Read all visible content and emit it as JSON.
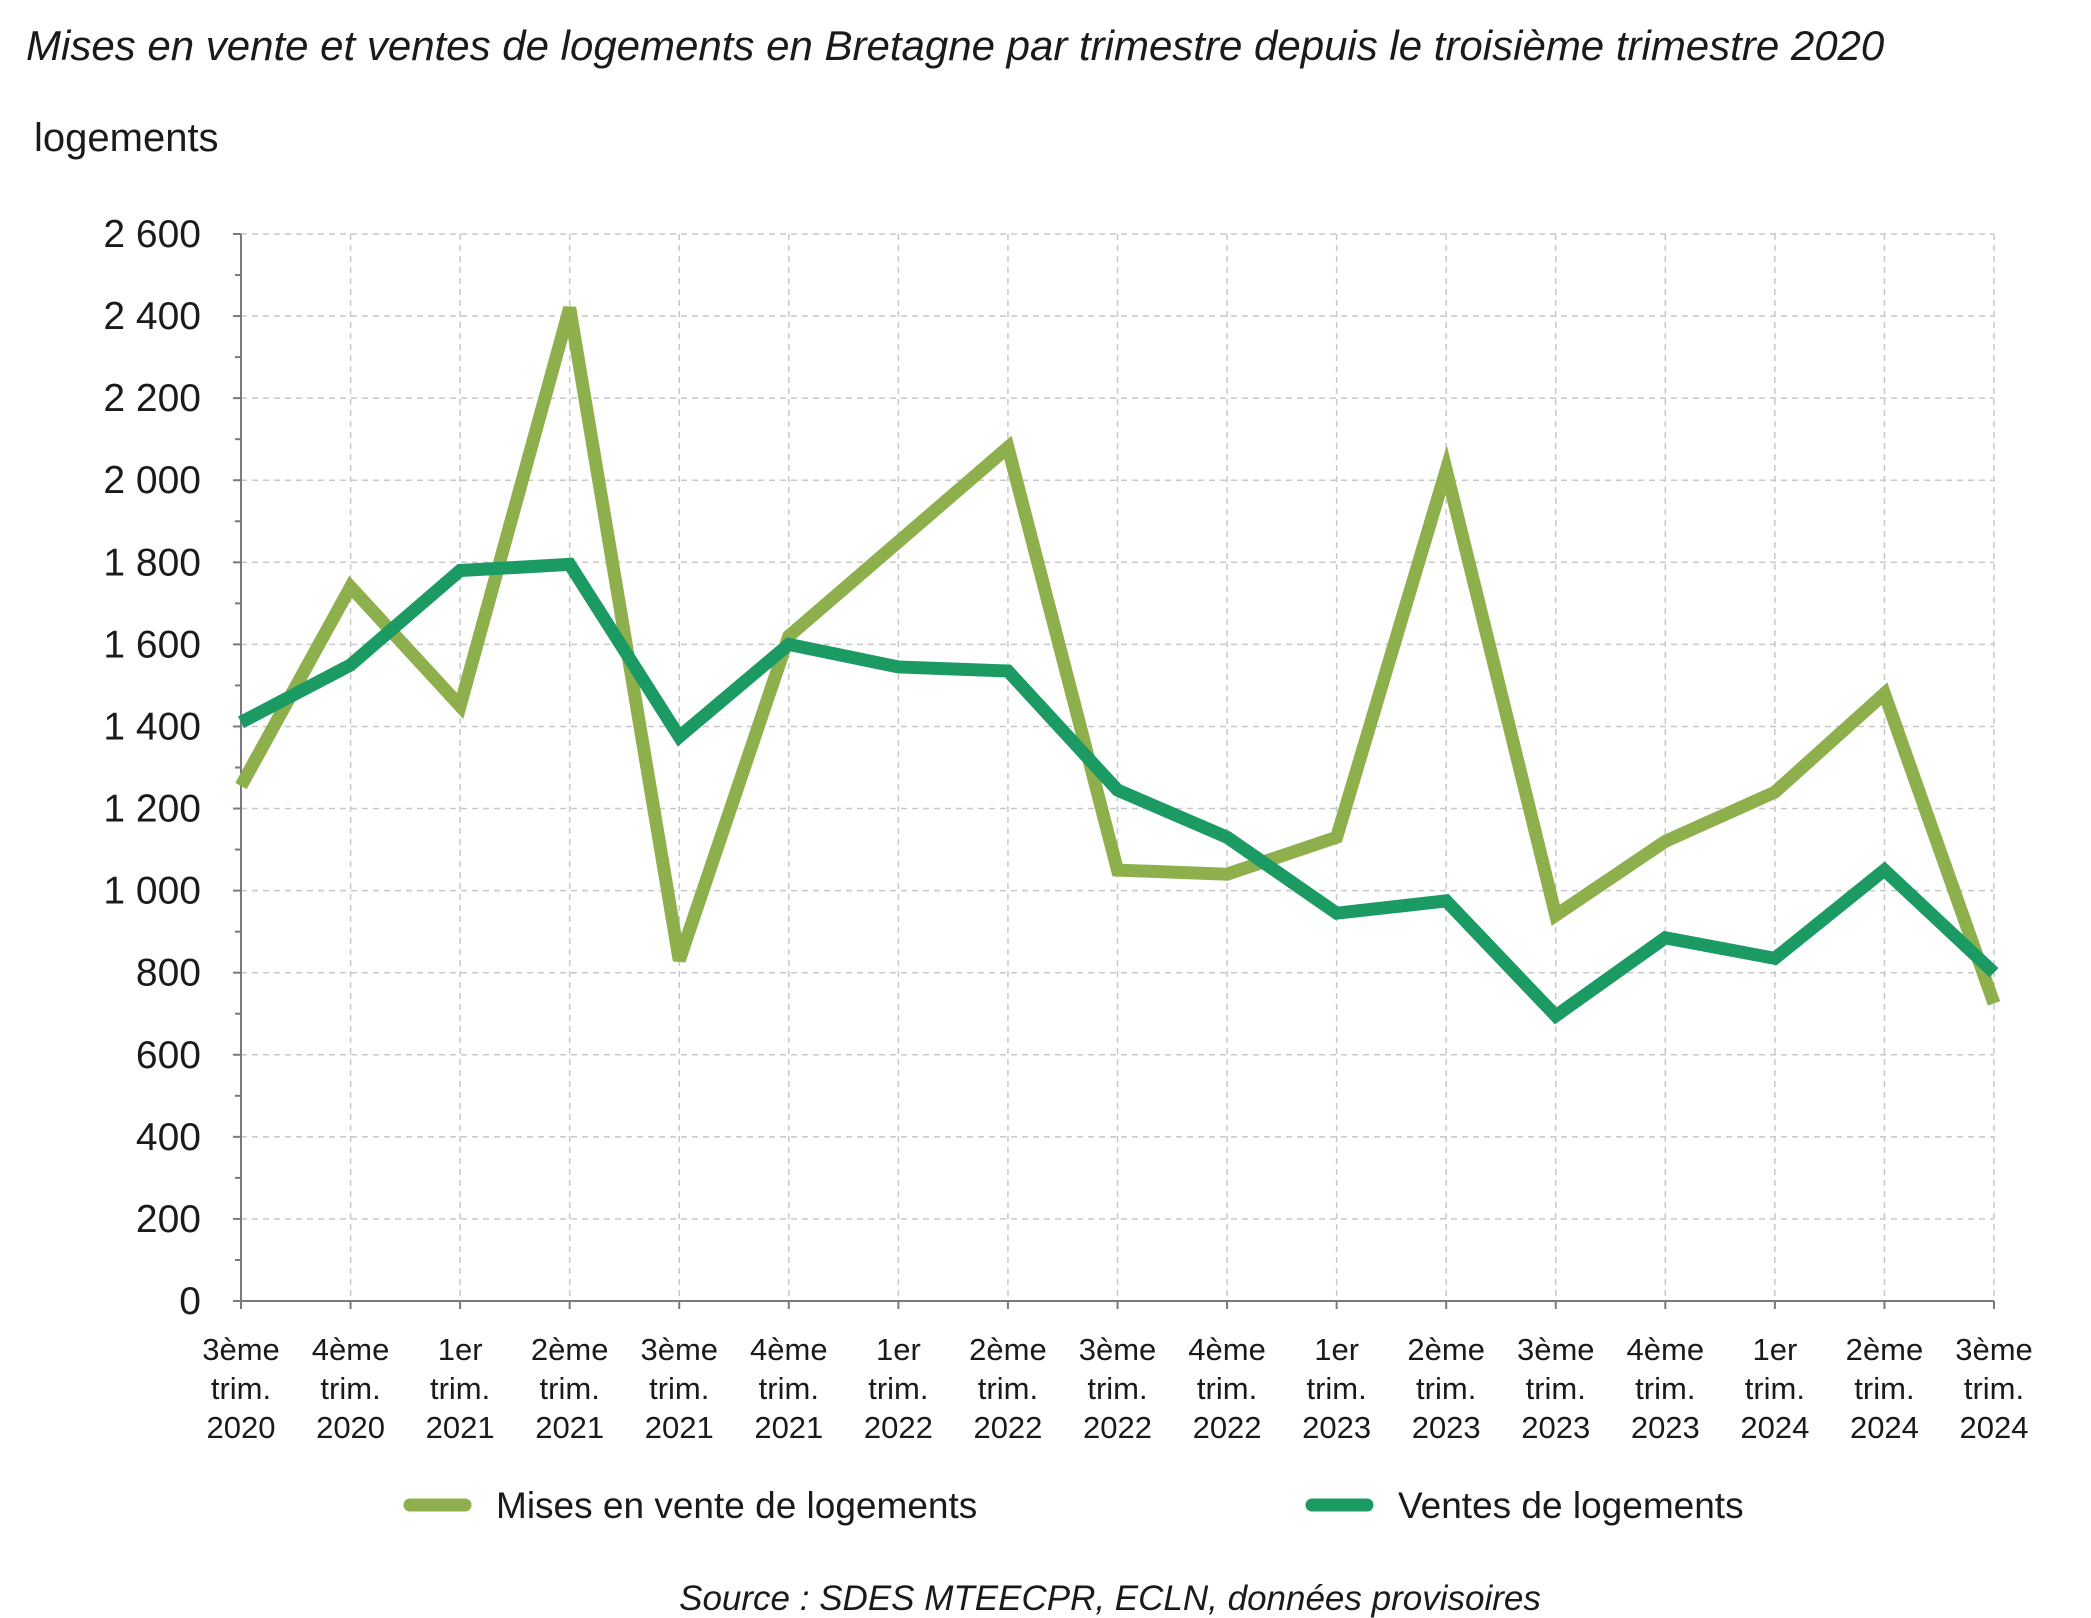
{
  "chart_data": {
    "type": "line",
    "title": "Mises en vente et ventes de logements en Bretagne par trimestre depuis le troisième trimestre 2020",
    "ylabel": "logements",
    "xlabel": "",
    "ylim": [
      0,
      2600
    ],
    "yticks": [
      {
        "value": 0,
        "label": "0"
      },
      {
        "value": 200,
        "label": "200"
      },
      {
        "value": 400,
        "label": "400"
      },
      {
        "value": 600,
        "label": "600"
      },
      {
        "value": 800,
        "label": "800"
      },
      {
        "value": 1000,
        "label": "1 000"
      },
      {
        "value": 1200,
        "label": "1 200"
      },
      {
        "value": 1400,
        "label": "1 400"
      },
      {
        "value": 1600,
        "label": "1 600"
      },
      {
        "value": 1800,
        "label": "1 800"
      },
      {
        "value": 2000,
        "label": "2 000"
      },
      {
        "value": 2200,
        "label": "2 200"
      },
      {
        "value": 2400,
        "label": "2 400"
      },
      {
        "value": 2600,
        "label": "2 600"
      }
    ],
    "grid": true,
    "legend_position": "bottom",
    "categories": [
      [
        "3ème",
        "trim.",
        "2020"
      ],
      [
        "4ème",
        "trim.",
        "2020"
      ],
      [
        "1er",
        "trim.",
        "2021"
      ],
      [
        "2ème",
        "trim.",
        "2021"
      ],
      [
        "3ème",
        "trim.",
        "2021"
      ],
      [
        "4ème",
        "trim.",
        "2021"
      ],
      [
        "1er",
        "trim.",
        "2022"
      ],
      [
        "2ème",
        "trim.",
        "2022"
      ],
      [
        "3ème",
        "trim.",
        "2022"
      ],
      [
        "4ème",
        "trim.",
        "2022"
      ],
      [
        "1er",
        "trim.",
        "2023"
      ],
      [
        "2ème",
        "trim.",
        "2023"
      ],
      [
        "3ème",
        "trim.",
        "2023"
      ],
      [
        "4ème",
        "trim.",
        "2023"
      ],
      [
        "1er",
        "trim.",
        "2024"
      ],
      [
        "2ème",
        "trim.",
        "2024"
      ],
      [
        "3ème",
        "trim.",
        "2024"
      ]
    ],
    "series": [
      {
        "name": "Mises en vente de logements",
        "color": "#8db04d",
        "values": [
          1255,
          1740,
          1450,
          2420,
          830,
          1620,
          1850,
          2080,
          1050,
          1040,
          1130,
          2025,
          940,
          1120,
          1240,
          1480,
          725
        ]
      },
      {
        "name": "Ventes de logements",
        "color": "#1b9a64",
        "values": [
          1410,
          1550,
          1780,
          1795,
          1375,
          1600,
          1545,
          1535,
          1245,
          1130,
          945,
          975,
          695,
          885,
          835,
          1050,
          800
        ]
      }
    ],
    "source": "Source : SDES MTEECPR, ECLN, données provisoires"
  }
}
